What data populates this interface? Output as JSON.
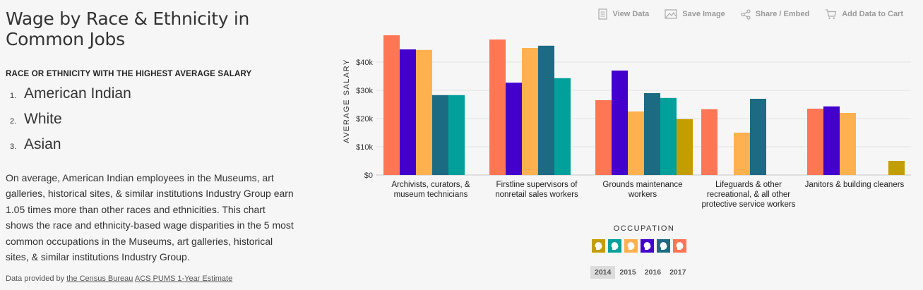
{
  "title": "Wage by Race & Ethnicity in Common Jobs",
  "subhead": "RACE OR ETHNICITY WITH THE HIGHEST AVERAGE SALARY",
  "ranking": [
    {
      "num": "1.",
      "name": "American Indian"
    },
    {
      "num": "2.",
      "name": "White"
    },
    {
      "num": "3.",
      "name": "Asian"
    }
  ],
  "description": "On average, American Indian employees in the Museums, art galleries, historical sites, & similar institutions Industry Group earn 1.05 times more than other races and ethnicities. This chart shows the race and ethnicity-based wage disparities in the 5 most common occupations in the Museums, art galleries, historical sites, & similar institutions Industry Group.",
  "source": {
    "prefix": "Data provided by",
    "link1": "the Census Bureau",
    "link2": "ACS PUMS 1-Year Estimate"
  },
  "toolbar": [
    {
      "label": "View Data",
      "icon": "document-icon"
    },
    {
      "label": "Save Image",
      "icon": "image-icon"
    },
    {
      "label": "Share / Embed",
      "icon": "share-icon"
    },
    {
      "label": "Add Data to Cart",
      "icon": "cart-icon"
    }
  ],
  "chart_data": {
    "type": "bar",
    "ylabel": "AVERAGE SALARY",
    "xlabel": "OCCUPATION",
    "ylim": [
      0,
      50000
    ],
    "yticks": [
      0,
      10000,
      20000,
      30000,
      40000
    ],
    "ytick_labels": [
      "$0",
      "$10k",
      "$20k",
      "$30k",
      "$40k"
    ],
    "grid": true,
    "categories": [
      [
        "Archivists, curators, &",
        "museum technicians"
      ],
      [
        "Firstline supervisors of",
        "nonretail sales workers"
      ],
      [
        "Grounds maintenance",
        "workers"
      ],
      [
        "Lifeguards & other",
        "recreational, & all other",
        "protective service workers"
      ],
      [
        "Janitors & building cleaners"
      ]
    ],
    "series": [
      {
        "color": "#ff7655",
        "values": [
          49500,
          48000,
          26500,
          23300,
          23500
        ]
      },
      {
        "color": "#4300cc",
        "values": [
          44500,
          32700,
          37000,
          null,
          24300
        ]
      },
      {
        "color": "#ffb14f",
        "values": [
          44300,
          45000,
          22500,
          15000,
          22000
        ]
      },
      {
        "color": "#1d6a83",
        "values": [
          28300,
          45800,
          29000,
          27000,
          null
        ]
      },
      {
        "color": "#01a09b",
        "values": [
          28300,
          34300,
          27300,
          null,
          null
        ]
      },
      {
        "color": "#c39e00",
        "values": [
          null,
          null,
          19800,
          null,
          5000
        ]
      }
    ]
  },
  "legend_colors": [
    "#c39e00",
    "#01a09b",
    "#ffb14f",
    "#4300cc",
    "#1d6a83",
    "#ff7655"
  ],
  "years": [
    "2014",
    "2015",
    "2016",
    "2017"
  ],
  "active_year": "2014"
}
